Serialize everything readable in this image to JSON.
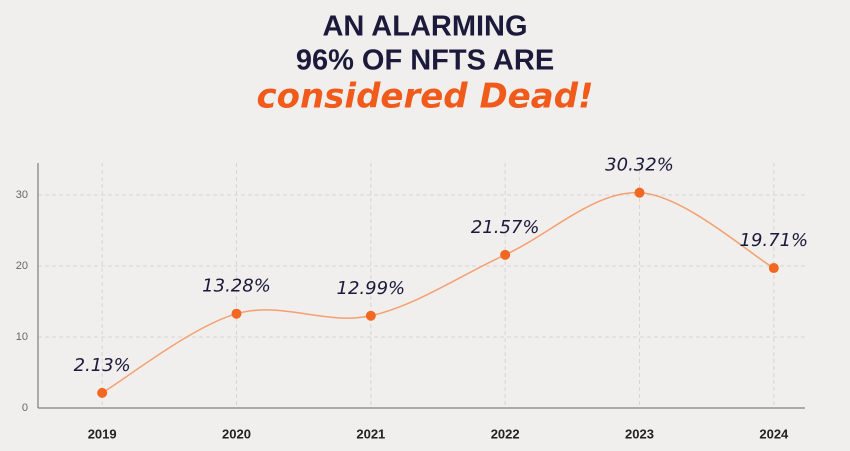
{
  "chart_data": {
    "type": "line",
    "title_lines": [
      "AN ALARMING",
      "96% OF NFTS ARE"
    ],
    "subtitle": "considered Dead!",
    "categories": [
      "2019",
      "2020",
      "2021",
      "2022",
      "2023",
      "2024"
    ],
    "series": [
      {
        "color": "#f26722",
        "line_color": "#f5a070",
        "values": [
          2.13,
          13.28,
          12.99,
          21.57,
          30.32,
          19.71
        ],
        "value_labels": [
          "2.13%",
          "13.28%",
          "12.99%",
          "21.57%",
          "30.32%",
          "19.71%"
        ]
      }
    ],
    "ylim": [
      0,
      34.5
    ],
    "yticks": [
      0,
      10,
      20,
      30
    ],
    "grid": true
  }
}
